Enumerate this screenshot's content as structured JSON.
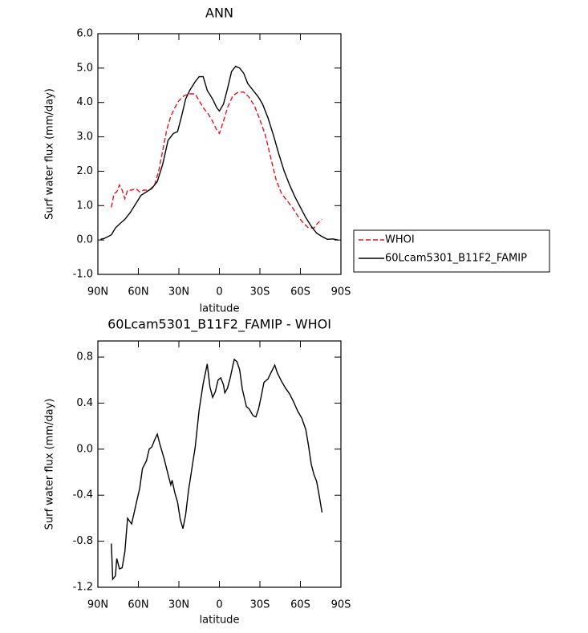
{
  "chart_data": [
    {
      "type": "line",
      "title": "ANN",
      "xlabel": "latitude",
      "ylabel": "Surf water flux (mm/day)",
      "xlim": [
        90,
        -90
      ],
      "xticks": [
        {
          "value": 90,
          "label": "90N"
        },
        {
          "value": 60,
          "label": "60N"
        },
        {
          "value": 30,
          "label": "30N"
        },
        0,
        {
          "value": -30,
          "label": "30S"
        },
        {
          "value": -60,
          "label": "60S"
        },
        {
          "value": -90,
          "label": "90S"
        }
      ],
      "ylim": [
        -1,
        6
      ],
      "yticks": [
        {
          "value": -1,
          "label": "-1.0"
        },
        {
          "value": 0,
          "label": "0.0"
        },
        {
          "value": 1,
          "label": "1.0"
        },
        {
          "value": 2,
          "label": "2.0"
        },
        {
          "value": 3,
          "label": "3.0"
        },
        {
          "value": 4,
          "label": "4.0"
        },
        {
          "value": 5,
          "label": "5.0"
        },
        {
          "value": 6,
          "label": "6.0"
        }
      ],
      "legend": "right",
      "series": [
        {
          "name": "WHOI",
          "color": "#e8141c",
          "dashed": true,
          "x": [
            80,
            78,
            76,
            74,
            72,
            70,
            68,
            65,
            62,
            59,
            56,
            52,
            48,
            45,
            42,
            39,
            36,
            33,
            30,
            26,
            22,
            18,
            15,
            12,
            8,
            5,
            2,
            0,
            -3,
            -6,
            -10,
            -14,
            -18,
            -22,
            -26,
            -30,
            -34,
            -38,
            -42,
            -46,
            -50,
            -54,
            -58,
            -62,
            -66,
            -70,
            -73,
            -76
          ],
          "values": [
            0.95,
            1.35,
            1.4,
            1.6,
            1.45,
            1.2,
            1.45,
            1.45,
            1.5,
            1.4,
            1.45,
            1.45,
            1.6,
            2.0,
            2.6,
            3.2,
            3.6,
            3.85,
            4.05,
            4.2,
            4.25,
            4.25,
            4.05,
            3.85,
            3.65,
            3.45,
            3.2,
            3.1,
            3.45,
            3.85,
            4.2,
            4.3,
            4.3,
            4.15,
            3.9,
            3.5,
            3.05,
            2.4,
            1.75,
            1.35,
            1.15,
            0.95,
            0.7,
            0.5,
            0.35,
            0.35,
            0.5,
            0.6
          ]
        },
        {
          "name": "60Lcam5301_B11F2_FAMIP",
          "color": "#000000",
          "dashed": false,
          "x": [
            88,
            85,
            80,
            77,
            73,
            70,
            66,
            62,
            58,
            54,
            50,
            46,
            42,
            38,
            34,
            31,
            28,
            25,
            22,
            18,
            15,
            12,
            9,
            5,
            2,
            0,
            -3,
            -6,
            -9,
            -12,
            -15,
            -18,
            -21,
            -25,
            -29,
            -32,
            -36,
            -40,
            -44,
            -48,
            -52,
            -56,
            -60,
            -64,
            -68,
            -72,
            -76,
            -80,
            -84,
            -88
          ],
          "values": [
            0.02,
            0.05,
            0.15,
            0.35,
            0.5,
            0.6,
            0.8,
            1.05,
            1.3,
            1.4,
            1.5,
            1.7,
            2.2,
            2.9,
            3.1,
            3.15,
            3.6,
            4.1,
            4.35,
            4.6,
            4.75,
            4.75,
            4.35,
            4.1,
            3.85,
            3.75,
            3.95,
            4.4,
            4.9,
            5.05,
            5.0,
            4.85,
            4.55,
            4.35,
            4.15,
            3.95,
            3.55,
            3.05,
            2.5,
            2.0,
            1.6,
            1.25,
            0.95,
            0.65,
            0.4,
            0.2,
            0.1,
            0.02,
            0.03,
            0.0
          ]
        }
      ]
    },
    {
      "type": "line",
      "title": "60Lcam5301_B11F2_FAMIP - WHOI",
      "xlabel": "latitude",
      "ylabel": "Surf water flux (mm/day)",
      "xlim": [
        90,
        -90
      ],
      "xticks": [
        {
          "value": 90,
          "label": "90N"
        },
        {
          "value": 60,
          "label": "60N"
        },
        {
          "value": 30,
          "label": "30N"
        },
        0,
        {
          "value": -30,
          "label": "30S"
        },
        {
          "value": -60,
          "label": "60S"
        },
        {
          "value": -90,
          "label": "90S"
        }
      ],
      "ylim": [
        -1.2,
        0.94
      ],
      "yticks": [
        -1.2,
        -0.8,
        -0.4,
        {
          "value": 0,
          "label": "0.0"
        },
        0.4,
        0.8
      ],
      "series": [
        {
          "color": "#000000",
          "dashed": false,
          "x": [
            80,
            79,
            77,
            76,
            74,
            72,
            70,
            68,
            65,
            61,
            59,
            57,
            54,
            52,
            50,
            48,
            46,
            44,
            41,
            38,
            36,
            35,
            33,
            31,
            29,
            27,
            25,
            23,
            20,
            18,
            15,
            12,
            9,
            7,
            5,
            3,
            1,
            -1,
            -3,
            -4,
            -6,
            -8,
            -11,
            -13,
            -15,
            -17,
            -20,
            -22,
            -25,
            -27,
            -29,
            -31,
            -33,
            -36,
            -38,
            -41,
            -43,
            -46,
            -49,
            -52,
            -55,
            -58,
            -61,
            -64,
            -66,
            -68,
            -70,
            -72,
            -74,
            -76
          ],
          "values": [
            -0.82,
            -1.13,
            -1.1,
            -0.95,
            -1.04,
            -1.03,
            -0.89,
            -0.6,
            -0.65,
            -0.44,
            -0.34,
            -0.17,
            -0.1,
            0.0,
            0.02,
            0.08,
            0.13,
            0.04,
            -0.08,
            -0.22,
            -0.31,
            -0.27,
            -0.38,
            -0.46,
            -0.61,
            -0.69,
            -0.57,
            -0.37,
            -0.14,
            0.01,
            0.34,
            0.57,
            0.74,
            0.54,
            0.45,
            0.5,
            0.6,
            0.62,
            0.56,
            0.49,
            0.53,
            0.62,
            0.78,
            0.76,
            0.69,
            0.52,
            0.37,
            0.35,
            0.29,
            0.28,
            0.35,
            0.46,
            0.58,
            0.61,
            0.66,
            0.73,
            0.66,
            0.59,
            0.53,
            0.48,
            0.41,
            0.33,
            0.27,
            0.17,
            0.03,
            -0.13,
            -0.22,
            -0.28,
            -0.41,
            -0.55
          ]
        }
      ]
    }
  ]
}
